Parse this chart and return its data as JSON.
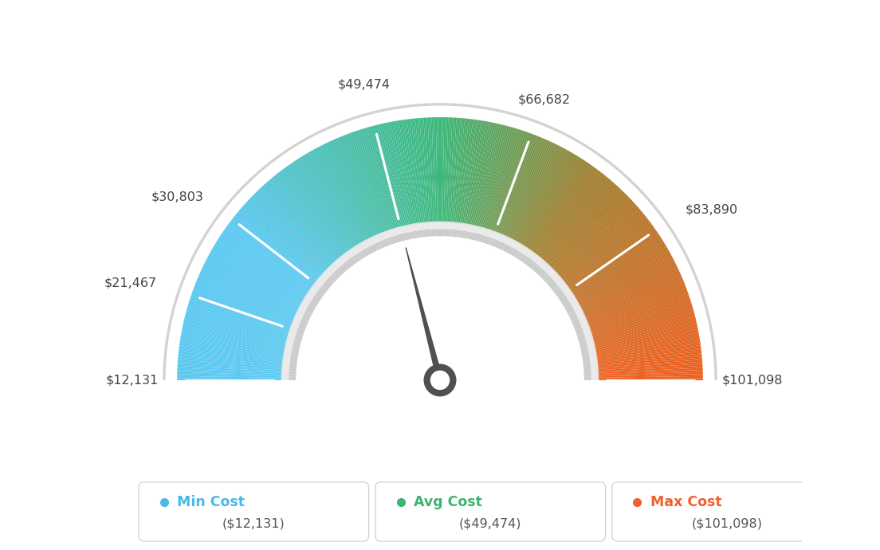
{
  "min_val": 12131,
  "max_val": 101098,
  "avg_val": 49474,
  "tick_values": [
    12131,
    21467,
    30803,
    49474,
    66682,
    83890,
    101098
  ],
  "labels": {
    "12131": "$12,131",
    "21467": "$21,467",
    "30803": "$30,803",
    "49474": "$49,474",
    "66682": "$66,682",
    "83890": "$83,890",
    "101098": "$101,098"
  },
  "legend": [
    {
      "label": "Min Cost",
      "value": "($12,131)",
      "color": "#4ab8e8"
    },
    {
      "label": "Avg Cost",
      "value": "($49,474)",
      "color": "#3cb371"
    },
    {
      "label": "Max Cost",
      "value": "($101,098)",
      "color": "#f06030"
    }
  ],
  "background_color": "#ffffff",
  "needle_color": "#505050",
  "outer_line_color": "#d8d8d8",
  "inner_arc_color": "#e0e0e0",
  "inner_arc_color2": "#c8c8c8"
}
